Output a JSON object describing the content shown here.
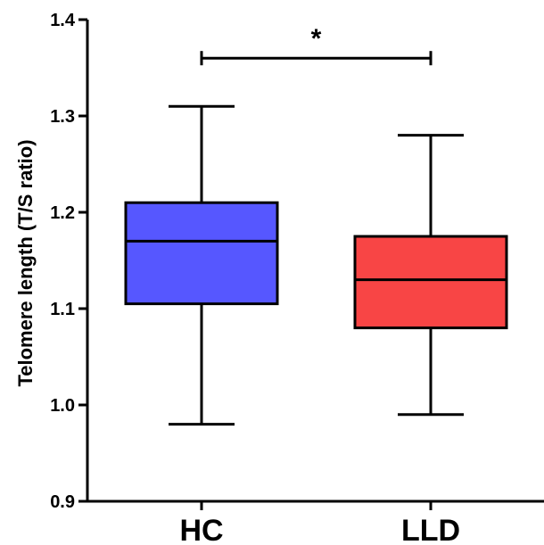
{
  "chart_data": {
    "type": "box",
    "title": "",
    "xlabel": "",
    "ylabel": "Telomere length (T/S ratio)",
    "ylim": [
      0.9,
      1.4
    ],
    "yticks": [
      "0.9",
      "1.0",
      "1.1",
      "1.2",
      "1.3",
      "1.4"
    ],
    "categories": [
      "HC",
      "LLD"
    ],
    "series": [
      {
        "category": "HC",
        "min": 0.98,
        "q1": 1.105,
        "median": 1.17,
        "q3": 1.21,
        "max": 1.31,
        "color": "#5657FF"
      },
      {
        "category": "LLD",
        "min": 0.99,
        "q1": 1.08,
        "median": 1.13,
        "q3": 1.175,
        "max": 1.28,
        "color": "#F84545"
      }
    ],
    "significance": {
      "from": "HC",
      "to": "LLD",
      "label": "*",
      "y": 1.36
    },
    "grid": false,
    "legend": "none"
  }
}
